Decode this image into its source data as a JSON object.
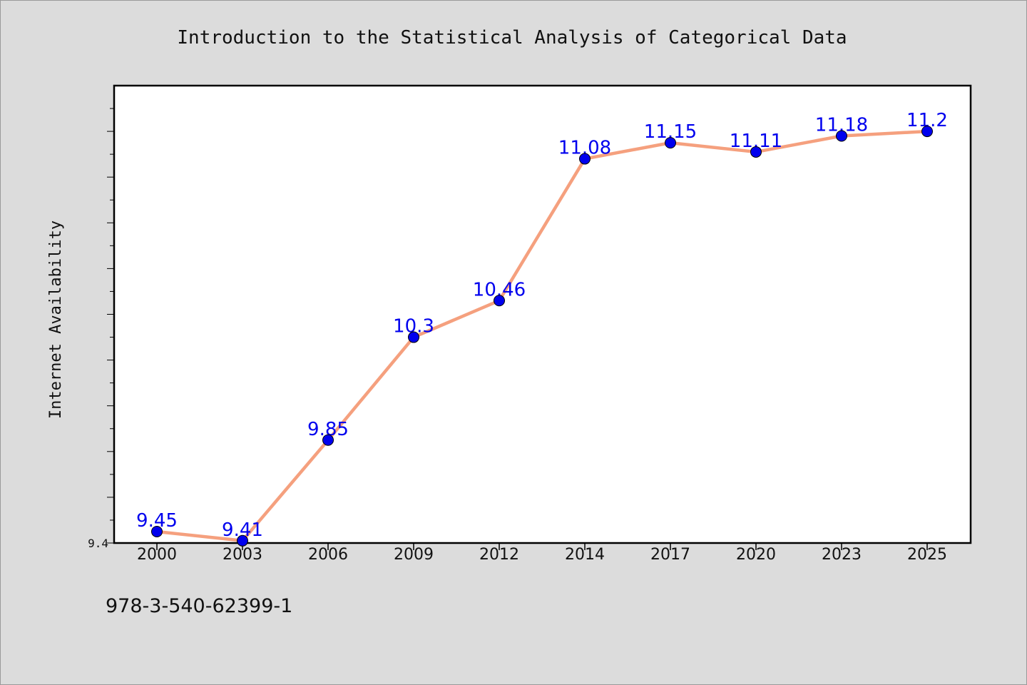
{
  "chart_data": {
    "type": "line",
    "title": "Introduction to the Statistical Analysis of Categorical Data",
    "xlabel": "",
    "ylabel": "Internet Availability",
    "categories": [
      "2000",
      "2003",
      "2006",
      "2009",
      "2012",
      "2014",
      "2017",
      "2020",
      "2023",
      "2025"
    ],
    "series": [
      {
        "values": [
          9.45,
          9.41,
          9.85,
          10.3,
          10.46,
          11.08,
          11.15,
          11.11,
          11.18,
          11.2
        ]
      }
    ],
    "data_labels": [
      "9.45",
      "9.41",
      "9.85",
      "10.3",
      "10.46",
      "11.08",
      "11.15",
      "11.11",
      "11.18",
      "11.2"
    ],
    "ylim": [
      9.4,
      11.4
    ],
    "yticks": [
      9.4
    ],
    "ytick_labels": [
      "9.4"
    ],
    "grid": false,
    "legend": "none",
    "colors": {
      "line": "#f5a07e",
      "marker": "#0000ee",
      "data_label": "#0000ee",
      "plot_background": "#ffffff",
      "figure_background": "#dcdcdc"
    }
  },
  "footer": {
    "isbn": "978-3-540-62399-1"
  }
}
